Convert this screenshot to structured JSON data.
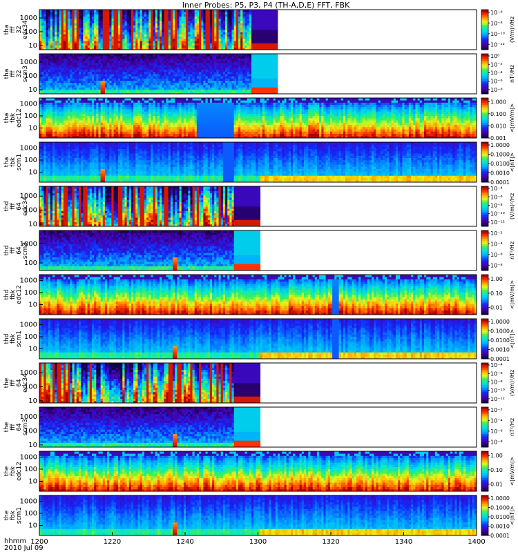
{
  "chart_data": {
    "type": "heatmap",
    "title": "Inner Probes: P5, P3, P4 (TH-A,D,E) FFT, FBK",
    "x_ticks": [
      "1200",
      "1220",
      "1240",
      "1300",
      "1320",
      "1340",
      "1400"
    ],
    "x_tick_minutes": [
      0,
      20,
      40,
      60,
      80,
      100,
      120
    ],
    "x_range_minutes": [
      0,
      120
    ],
    "footer": {
      "label": "hhmm",
      "date": "2010 Jul 09"
    },
    "panels": [
      {
        "ylabel": [
          "tha",
          "fff",
          "32",
          "edc34"
        ],
        "yticks": [
          "10",
          "100",
          "1000"
        ],
        "y_tick_values": [
          10,
          100,
          1000
        ],
        "ylim": [
          5,
          4000
        ],
        "log": true,
        "colorbar_label": "(V/m)²/Hz",
        "cb_ticks": [
          "10⁻⁶",
          "10⁻⁸",
          "10⁻¹⁰",
          "10⁻¹²"
        ],
        "cb_tick_exponents": [
          -6,
          -8,
          -10,
          -12
        ],
        "cb_range": [
          -13,
          -5.5
        ],
        "kind": "fff_e",
        "data_end_min": 58,
        "coarse_end_min": 65,
        "spike_min": null
      },
      {
        "ylabel": [
          "tha",
          "fff",
          "32",
          "scm3"
        ],
        "yticks": [
          "10",
          "100",
          "1000"
        ],
        "y_tick_values": [
          10,
          100,
          1000
        ],
        "ylim": [
          5,
          4000
        ],
        "log": true,
        "colorbar_label": "nT²/Hz",
        "cb_ticks": [
          "10⁰",
          "10⁻²",
          "10⁻⁴",
          "10⁻⁶",
          "10⁻⁸"
        ],
        "cb_tick_exponents": [
          0,
          -2,
          -4,
          -6,
          -8
        ],
        "cb_range": [
          -9,
          0.5
        ],
        "kind": "fff_b",
        "data_end_min": 58,
        "coarse_end_min": 65,
        "spike_min": 17
      },
      {
        "ylabel": [
          "tha",
          "fbk",
          "edc12"
        ],
        "yticks": [
          "10",
          "100",
          "1000"
        ],
        "y_tick_values": [
          10,
          100,
          1000
        ],
        "ylim": [
          1.5,
          3000
        ],
        "log": true,
        "colorbar_label": "<|mV/m|>",
        "cb_ticks": [
          "1.000",
          "0.100",
          "0.010",
          "0.001"
        ],
        "cb_tick_exponents": [
          0,
          -1,
          -2,
          -3
        ],
        "cb_range": [
          -3,
          0.3
        ],
        "kind": "fbk_e",
        "gap_min": [
          43,
          53
        ],
        "spike_min": null
      },
      {
        "ylabel": [
          "tha",
          "fbk",
          "scm1"
        ],
        "yticks": [
          "10",
          "100",
          "1000"
        ],
        "y_tick_values": [
          10,
          100,
          1000
        ],
        "ylim": [
          1.5,
          3000
        ],
        "log": true,
        "colorbar_label": "<|nT|>",
        "cb_ticks": [
          "1.0000",
          "0.1000",
          "0.0100",
          "0.0010",
          "0.0001"
        ],
        "cb_tick_exponents": [
          0,
          -1,
          -2,
          -3,
          -4
        ],
        "cb_range": [
          -4,
          0.3
        ],
        "kind": "fbk_b",
        "gap_min": [
          50,
          53
        ],
        "spike_min": 17
      },
      {
        "ylabel": [
          "thd",
          "fff",
          "64",
          "edc34"
        ],
        "yticks": [
          "10",
          "100",
          "1000"
        ],
        "y_tick_values": [
          10,
          100,
          1000
        ],
        "ylim": [
          7,
          5000
        ],
        "log": true,
        "colorbar_label": "(V/m)²/Hz",
        "cb_ticks": [
          "10⁻⁴",
          "10⁻⁶",
          "10⁻⁸",
          "10⁻¹⁰",
          "10⁻¹²"
        ],
        "cb_tick_exponents": [
          -4,
          -6,
          -8,
          -10,
          -12
        ],
        "cb_range": [
          -13,
          -3.5
        ],
        "kind": "fff_e",
        "data_end_min": 53,
        "coarse_end_min": 60,
        "spike_min": null
      },
      {
        "ylabel": [
          "thd",
          "fff",
          "64",
          "scm3"
        ],
        "yticks": [
          "100",
          "1000"
        ],
        "y_tick_values": [
          100,
          1000
        ],
        "ylim": [
          40,
          5000
        ],
        "log": true,
        "colorbar_label": "nT²/Hz",
        "cb_ticks": [
          "10⁻²",
          "10⁻⁴",
          "10⁻⁶",
          "10⁻⁸"
        ],
        "cb_tick_exponents": [
          -2,
          -4,
          -6,
          -8
        ],
        "cb_range": [
          -9,
          -1.5
        ],
        "kind": "fff_b",
        "data_end_min": 53,
        "coarse_end_min": 60,
        "spike_min": 37
      },
      {
        "ylabel": [
          "thd",
          "fbk",
          "edc12"
        ],
        "yticks": [
          "10",
          "100",
          "1000"
        ],
        "y_tick_values": [
          10,
          100,
          1000
        ],
        "ylim": [
          1.5,
          3000
        ],
        "log": true,
        "colorbar_label": "<|mV/m|>",
        "cb_ticks": [
          "1.00",
          "0.10",
          "0.01"
        ],
        "cb_tick_exponents": [
          0,
          -1,
          -2
        ],
        "cb_range": [
          -2.5,
          0.3
        ],
        "kind": "fbk_e",
        "gap_min": [
          80,
          82
        ],
        "spike_min": null
      },
      {
        "ylabel": [
          "thd",
          "fbk",
          "scm1"
        ],
        "yticks": [
          "10",
          "100",
          "1000"
        ],
        "y_tick_values": [
          10,
          100,
          1000
        ],
        "ylim": [
          1.5,
          3000
        ],
        "log": true,
        "colorbar_label": "<|nT|>",
        "cb_ticks": [
          "1.0000",
          "0.1000",
          "0.0100",
          "0.0010",
          "0.0001"
        ],
        "cb_tick_exponents": [
          0,
          -1,
          -2,
          -3,
          -4
        ],
        "cb_range": [
          -4,
          0.3
        ],
        "kind": "fbk_b",
        "gap_min": [
          80,
          82
        ],
        "spike_min": 37
      },
      {
        "ylabel": [
          "the",
          "fff",
          "64",
          "edc34"
        ],
        "yticks": [
          "10",
          "100",
          "1000"
        ],
        "y_tick_values": [
          10,
          100,
          1000
        ],
        "ylim": [
          7,
          5000
        ],
        "log": true,
        "colorbar_label": "(V/m)²/Hz",
        "cb_ticks": [
          "10⁻⁴",
          "10⁻⁶",
          "10⁻⁸",
          "10⁻¹⁰",
          "10⁻¹²"
        ],
        "cb_tick_exponents": [
          -4,
          -6,
          -8,
          -10,
          -12
        ],
        "cb_range": [
          -13,
          -3.5
        ],
        "kind": "fff_e",
        "data_end_min": 53,
        "coarse_end_min": 60,
        "spike_min": null
      },
      {
        "ylabel": [
          "the",
          "fff",
          "64",
          "scm3"
        ],
        "yticks": [
          "10",
          "100",
          "1000"
        ],
        "y_tick_values": [
          10,
          100,
          1000
        ],
        "ylim": [
          7,
          5000
        ],
        "log": true,
        "colorbar_label": "nT²/Hz",
        "cb_ticks": [
          "10⁻²",
          "10⁻⁴",
          "10⁻⁶",
          "10⁻⁸"
        ],
        "cb_tick_exponents": [
          -2,
          -4,
          -6,
          -8
        ],
        "cb_range": [
          -9,
          -1.5
        ],
        "kind": "fff_b",
        "data_end_min": 53,
        "coarse_end_min": 60,
        "spike_min": 37
      },
      {
        "ylabel": [
          "the",
          "fbk",
          "edc12"
        ],
        "yticks": [
          "10",
          "100",
          "1000"
        ],
        "y_tick_values": [
          10,
          100,
          1000
        ],
        "ylim": [
          1.5,
          3000
        ],
        "log": true,
        "colorbar_label": "<|mV/m|>",
        "cb_ticks": [
          "1.00",
          "0.10",
          "0.01"
        ],
        "cb_tick_exponents": [
          0,
          -1,
          -2
        ],
        "cb_range": [
          -2.5,
          0.3
        ],
        "kind": "fbk_e",
        "gap_min": null,
        "spike_min": null
      },
      {
        "ylabel": [
          "the",
          "fbk",
          "scm1"
        ],
        "yticks": [
          "10",
          "100",
          "1000"
        ],
        "y_tick_values": [
          10,
          100,
          1000
        ],
        "ylim": [
          1.5,
          3000
        ],
        "log": true,
        "colorbar_label": "<|nT|>",
        "cb_ticks": [
          "1.0000",
          "0.1000",
          "0.0100",
          "0.0010",
          "0.0001"
        ],
        "cb_tick_exponents": [
          0,
          -1,
          -2,
          -3,
          -4
        ],
        "cb_range": [
          -4,
          0.3
        ],
        "kind": "fbk_b",
        "gap_min": null,
        "spike_min": 37
      }
    ]
  }
}
